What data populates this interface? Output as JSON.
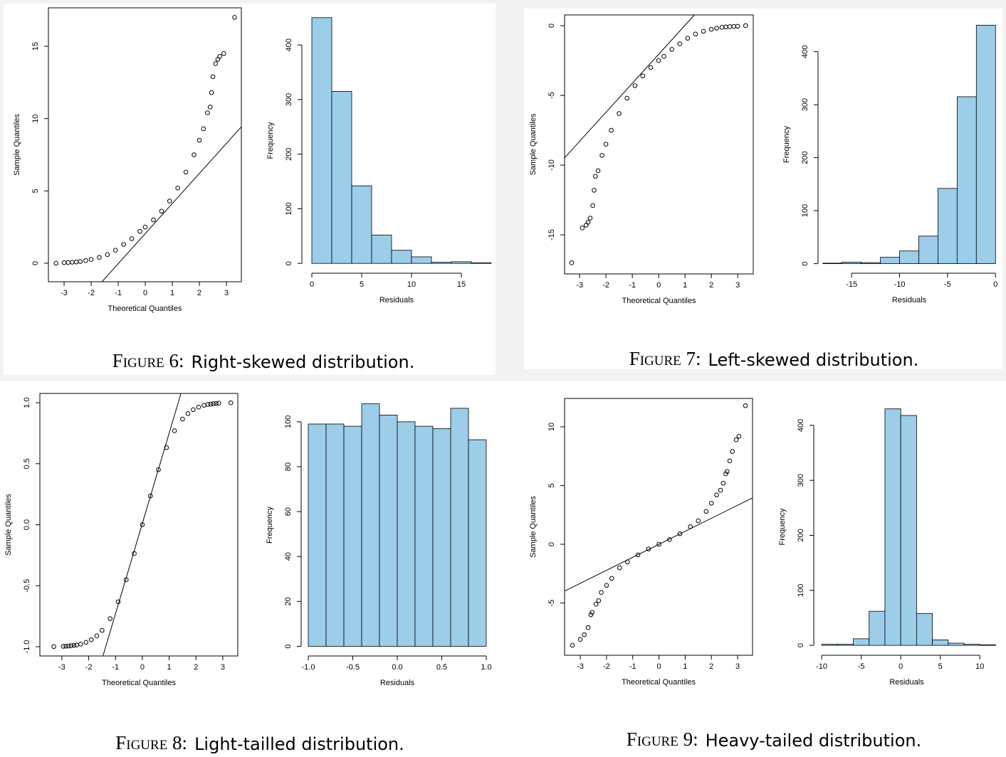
{
  "chart_data": [
    {
      "type": "scatter",
      "xlabel": "Theoretical Quantiles",
      "ylabel": "Sample Quantiles",
      "x": [
        -3.3,
        -3.0,
        -2.85,
        -2.7,
        -2.55,
        -2.4,
        -2.2,
        -2.0,
        -1.7,
        -1.4,
        -1.1,
        -0.8,
        -0.5,
        -0.2,
        0,
        0.3,
        0.6,
        0.9,
        1.2,
        1.5,
        1.8,
        2.0,
        2.15,
        2.3,
        2.4,
        2.45,
        2.5,
        2.6,
        2.68,
        2.75,
        2.9,
        3.3
      ],
      "values": [
        0.0,
        0.04,
        0.05,
        0.07,
        0.09,
        0.12,
        0.18,
        0.26,
        0.4,
        0.6,
        0.9,
        1.3,
        1.7,
        2.2,
        2.5,
        3.0,
        3.6,
        4.3,
        5.2,
        6.3,
        7.5,
        8.5,
        9.3,
        10.4,
        10.8,
        11.8,
        12.9,
        13.8,
        14.1,
        14.3,
        14.5,
        17.0
      ],
      "reference_line": {
        "intercept": 2.05,
        "slope": 2.08
      },
      "xlim": [
        -3.58,
        3.55
      ],
      "ylim": [
        -1.28,
        17.66
      ],
      "xticks": [
        -3,
        -2,
        -1,
        0,
        1,
        2,
        3
      ],
      "yticks": [
        0,
        5,
        10,
        15
      ]
    },
    {
      "type": "histogram",
      "xlabel": "Residuals",
      "ylabel": "Frequency",
      "color": "#9ccde9",
      "bins": [
        0,
        2,
        4,
        6,
        8,
        10,
        12,
        14,
        16,
        18
      ],
      "values": [
        450,
        315,
        142,
        52,
        24,
        12,
        2,
        3,
        1
      ],
      "xlim": [
        -1,
        18
      ],
      "ylim": [
        -18,
        468
      ],
      "xticks": [
        0,
        5,
        10,
        15
      ],
      "yticks": [
        0,
        100,
        200,
        300,
        400
      ]
    },
    {
      "type": "scatter",
      "xlabel": "Theoretical Quantiles",
      "ylabel": "Sample Quantiles",
      "x": [
        -3.3,
        -2.9,
        -2.75,
        -2.68,
        -2.6,
        -2.5,
        -2.45,
        -2.4,
        -2.3,
        -2.15,
        -2.0,
        -1.8,
        -1.5,
        -1.2,
        -0.9,
        -0.6,
        -0.3,
        0,
        0.2,
        0.5,
        0.8,
        1.1,
        1.4,
        1.7,
        2.0,
        2.2,
        2.4,
        2.55,
        2.7,
        2.85,
        3.0,
        3.3
      ],
      "values": [
        -17.0,
        -14.5,
        -14.3,
        -14.1,
        -13.8,
        -12.9,
        -11.8,
        -10.8,
        -10.4,
        -9.3,
        -8.5,
        -7.5,
        -6.3,
        -5.2,
        -4.3,
        -3.6,
        -3.0,
        -2.5,
        -2.2,
        -1.7,
        -1.3,
        -0.9,
        -0.6,
        -0.4,
        -0.26,
        -0.18,
        -0.12,
        -0.09,
        -0.07,
        -0.05,
        -0.04,
        0.0
      ],
      "reference_line": {
        "intercept": -2.05,
        "slope": 2.08
      },
      "xlim": [
        -3.57,
        3.59
      ],
      "ylim": [
        -17.8,
        0.77
      ],
      "xticks": [
        -3,
        -2,
        -1,
        0,
        1,
        2,
        3
      ],
      "yticks": [
        0,
        -5,
        -10,
        -15
      ]
    },
    {
      "type": "histogram",
      "xlabel": "Residuals",
      "ylabel": "Frequency",
      "color": "#9ccde9",
      "bins": [
        -18,
        -16,
        -14,
        -12,
        -10,
        -8,
        -6,
        -4,
        -2,
        0
      ],
      "values": [
        1,
        3,
        2,
        12,
        24,
        52,
        142,
        315,
        450
      ],
      "xlim": [
        -18.5,
        0.5
      ],
      "ylim": [
        -18,
        468
      ],
      "xticks": [
        -15,
        -10,
        -5,
        0
      ],
      "yticks": [
        0,
        100,
        200,
        300,
        400
      ]
    },
    {
      "type": "scatter",
      "xlabel": "Theoretical Quantiles",
      "ylabel": "Sample Quantiles",
      "x": [
        -3.3,
        -2.95,
        -2.85,
        -2.75,
        -2.65,
        -2.55,
        -2.45,
        -2.3,
        -2.1,
        -1.9,
        -1.7,
        -1.5,
        -1.2,
        -0.9,
        -0.6,
        -0.3,
        0,
        0.3,
        0.6,
        0.9,
        1.2,
        1.5,
        1.7,
        1.9,
        2.1,
        2.3,
        2.45,
        2.55,
        2.65,
        2.75,
        2.85,
        3.3
      ],
      "values": [
        -0.999,
        -0.997,
        -0.996,
        -0.994,
        -0.992,
        -0.989,
        -0.986,
        -0.979,
        -0.964,
        -0.943,
        -0.911,
        -0.866,
        -0.77,
        -0.632,
        -0.451,
        -0.236,
        0,
        0.236,
        0.451,
        0.632,
        0.77,
        0.866,
        0.911,
        0.943,
        0.964,
        0.979,
        0.986,
        0.989,
        0.992,
        0.994,
        0.996,
        0.999
      ],
      "reference_line": {
        "intercept": 0.01,
        "slope": 0.74
      },
      "xlim": [
        -3.82,
        3.56
      ],
      "ylim": [
        -1.076,
        1.076
      ],
      "xticks": [
        -3,
        -2,
        -1,
        0,
        1,
        2,
        3
      ],
      "yticks": [
        {
          "value": -1,
          "label": "-1.0"
        },
        -0.5,
        {
          "value": 0,
          "label": "0.0"
        },
        0.5,
        {
          "value": 1,
          "label": "1.0"
        }
      ]
    },
    {
      "type": "histogram",
      "xlabel": "Residuals",
      "ylabel": "Frequency",
      "color": "#9ccde9",
      "bins": [
        -1,
        -0.8,
        -0.6,
        -0.4,
        -0.2,
        0,
        0.2,
        0.4,
        0.6,
        0.8,
        1
      ],
      "values": [
        99,
        99,
        98,
        108,
        103,
        100,
        98,
        97,
        106,
        92
      ],
      "xlim": [
        -1.08,
        1.08
      ],
      "ylim": [
        -4.3,
        112.3
      ],
      "xticks": [
        {
          "value": -1,
          "label": "-1.0"
        },
        -0.5,
        {
          "value": 0,
          "label": "0.0"
        },
        0.5,
        {
          "value": 1,
          "label": "1.0"
        }
      ],
      "yticks": [
        0,
        20,
        40,
        60,
        80,
        100
      ]
    },
    {
      "type": "scatter",
      "xlabel": "Theoretical Quantiles",
      "ylabel": "Sample Quantiles",
      "x": [
        -3.3,
        -3.0,
        -2.85,
        -2.7,
        -2.6,
        -2.55,
        -2.4,
        -2.3,
        -2.2,
        -2.0,
        -1.8,
        -1.5,
        -1.2,
        -0.8,
        -0.4,
        0,
        0.4,
        0.8,
        1.2,
        1.5,
        1.8,
        2.0,
        2.2,
        2.35,
        2.45,
        2.55,
        2.6,
        2.7,
        2.8,
        2.95,
        3.05,
        3.3
      ],
      "values": [
        -8.6,
        -8.1,
        -7.7,
        -7.1,
        -6.0,
        -5.8,
        -5.1,
        -4.8,
        -4.1,
        -3.5,
        -2.9,
        -2.0,
        -1.5,
        -0.9,
        -0.4,
        0,
        0.4,
        0.9,
        1.5,
        2.0,
        2.8,
        3.5,
        4.2,
        4.6,
        5.2,
        6.0,
        6.2,
        7.1,
        7.9,
        8.9,
        9.2,
        11.8
      ],
      "reference_line": {
        "intercept": 0,
        "slope": 1.107
      },
      "xlim": [
        -3.6,
        3.57
      ],
      "ylim": [
        -9.45,
        12.42
      ],
      "xticks": [
        -3,
        -2,
        -1,
        0,
        1,
        2,
        3
      ],
      "yticks": [
        -5,
        0,
        5,
        10
      ]
    },
    {
      "type": "histogram",
      "xlabel": "Residuals",
      "ylabel": "Frequency",
      "color": "#9ccde9",
      "bins": [
        -10,
        -8,
        -6,
        -4,
        -2,
        0,
        2,
        4,
        6,
        8,
        10,
        12
      ],
      "values": [
        2,
        2,
        12,
        62,
        430,
        418,
        58,
        10,
        4,
        2,
        1
      ],
      "xlim": [
        -11,
        12.5
      ],
      "ylim": [
        -18,
        449
      ],
      "xticks": [
        -10,
        -5,
        0,
        5,
        10
      ],
      "yticks": [
        0,
        100,
        200,
        300,
        400
      ]
    }
  ],
  "captions": [
    {
      "label": "Figure 6:",
      "text": "Right-skewed distribution."
    },
    {
      "label": "Figure 7:",
      "text": "Left-skewed distribution."
    },
    {
      "label": "Figure 8:",
      "text": "Light-tailled distribution."
    },
    {
      "label": "Figure 9:",
      "text": "Heavy-tailed distribution."
    }
  ]
}
